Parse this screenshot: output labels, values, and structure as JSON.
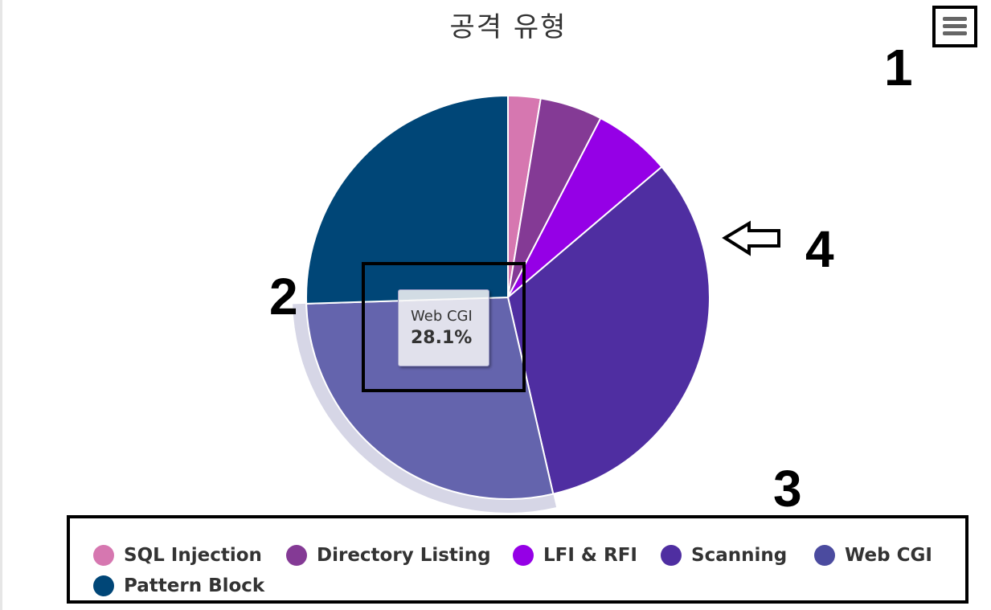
{
  "chart_data": {
    "type": "pie",
    "title": "공격 유형",
    "series": [
      {
        "name": "SQL Injection",
        "value": 2.6,
        "color": "#d677b0"
      },
      {
        "name": "Directory Listing",
        "value": 5.0,
        "color": "#843a95"
      },
      {
        "name": "LFI & RFI",
        "value": 6.2,
        "color": "#9500e6"
      },
      {
        "name": "Scanning",
        "value": 32.6,
        "color": "#4f2ea1"
      },
      {
        "name": "Web CGI",
        "value": 28.1,
        "color": "#4b4b9f"
      },
      {
        "name": "Pattern Block",
        "value": 25.5,
        "color": "#004677"
      }
    ],
    "hovered": "Web CGI",
    "legend_position": "bottom"
  },
  "tooltip": {
    "name": "Web CGI",
    "value": "28.1%"
  },
  "annotations": [
    "1",
    "2",
    "3",
    "4"
  ],
  "menu": {
    "icon": "hamburger-menu-icon"
  }
}
